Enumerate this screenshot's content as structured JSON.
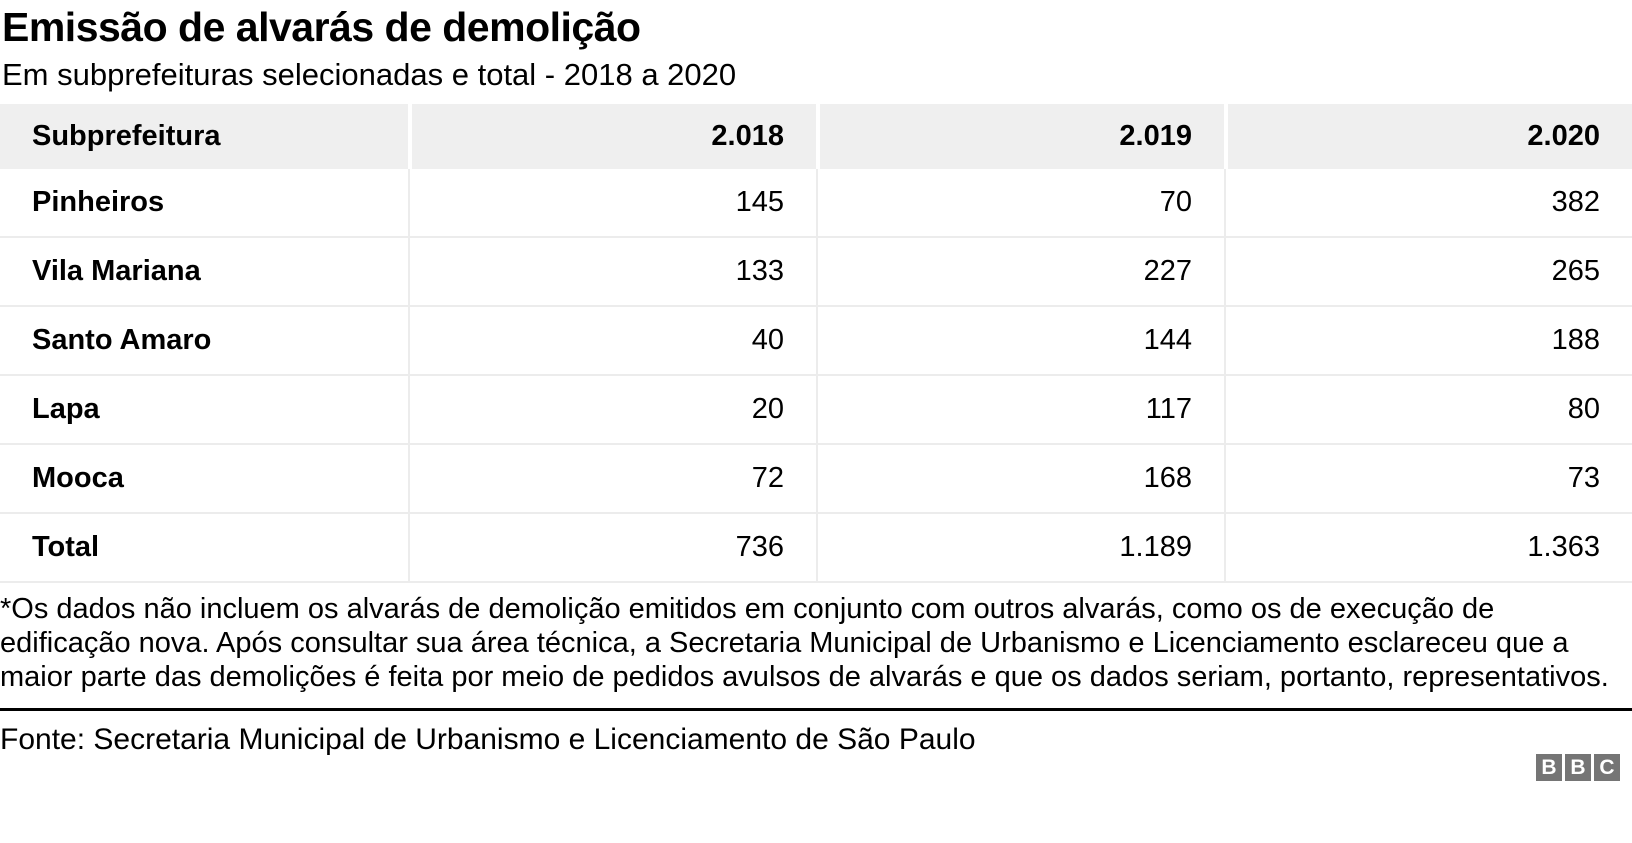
{
  "title": "Emissão de alvarás de demolição",
  "subtitle": "Em subprefeituras selecionadas e total - 2018 a 2020",
  "chart_data": {
    "type": "table",
    "title": "Emissão de alvarás de demolição",
    "subtitle": "Em subprefeituras selecionadas e total - 2018 a 2020",
    "columns": [
      "Subprefeitura",
      "2.018",
      "2.019",
      "2.020"
    ],
    "rows": [
      {
        "label": "Pinheiros",
        "values": [
          "145",
          "70",
          "382"
        ]
      },
      {
        "label": "Vila Mariana",
        "values": [
          "133",
          "227",
          "265"
        ]
      },
      {
        "label": "Santo Amaro",
        "values": [
          "40",
          "144",
          "188"
        ]
      },
      {
        "label": "Lapa",
        "values": [
          "20",
          "117",
          "80"
        ]
      },
      {
        "label": "Mooca",
        "values": [
          "72",
          "168",
          "73"
        ]
      },
      {
        "label": "Total",
        "values": [
          "736",
          "1.189",
          "1.363"
        ]
      }
    ]
  },
  "footnote": "*Os dados não incluem os alvarás de demolição emitidos em conjunto com outros alvarás, como os de execução de edificação nova. Após consultar sua área técnica, a Secretaria Municipal de Urbanismo e Licenciamento esclareceu que a maior parte das demolições é feita por meio de pedidos avulsos de alvarás e que os dados seriam, portanto, representativos.",
  "footer": {
    "source": "Fonte: Secretaria Municipal de Urbanismo e Licenciamento de São Paulo",
    "logo_letters": [
      "B",
      "B",
      "C"
    ]
  },
  "colors": {
    "header_bg": "#efefef",
    "divider": "#ececec",
    "rule": "#000000",
    "logo_block": "#757575",
    "text": "#000000"
  }
}
